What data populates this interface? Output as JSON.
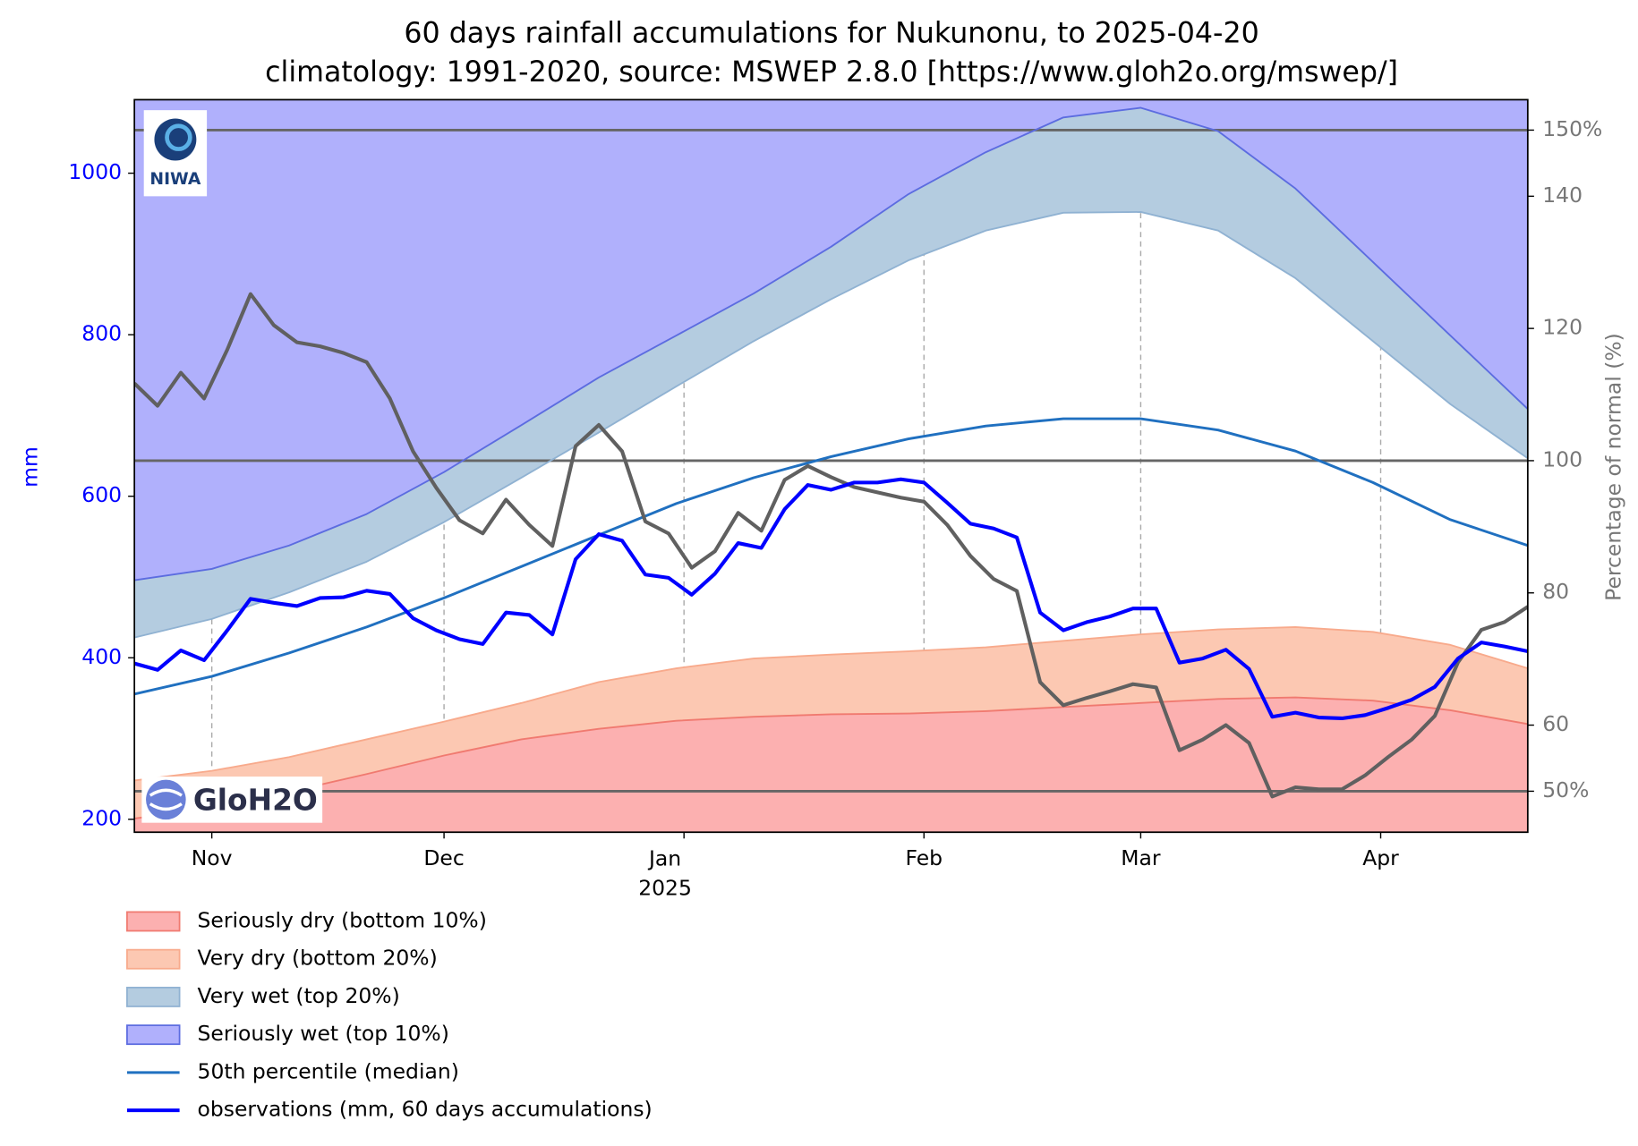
{
  "chart_data": {
    "type": "line",
    "title": "60 days rainfall accumulations for Nukunonu, to 2025-04-20",
    "subtitle": "climatology: 1991-2020, source: MSWEP 2.8.0 [https://www.gloh2o.org/mswep/]",
    "ylabel": "mm",
    "y2label": "Percentage of normal (%)",
    "logos": [
      "NIWA",
      "GloH2O"
    ],
    "xlim": [
      0,
      180
    ],
    "xticks": [
      {
        "value": 10,
        "label": "Nov"
      },
      {
        "value": 40,
        "label": "Dec"
      },
      {
        "value": 71,
        "label": "Jan\n2025"
      },
      {
        "value": 102,
        "label": "Feb"
      },
      {
        "value": 130,
        "label": "Mar"
      },
      {
        "value": 161,
        "label": "Apr"
      }
    ],
    "xgrid": true,
    "ylim": [
      184,
      1091
    ],
    "yticks": [
      200,
      400,
      600,
      800,
      1000
    ],
    "y2lim": [
      43.8,
      154.6
    ],
    "y2ticks": [
      {
        "value": 50,
        "label": "50%"
      },
      60,
      80,
      100,
      120,
      140,
      {
        "value": 150,
        "label": "150%"
      }
    ],
    "reference_lines_y2": [
      50,
      100,
      150
    ],
    "legend": "below",
    "series": [
      {
        "name": "Seriously dry (bottom 10%)",
        "fill": "down",
        "color": "#fcb0b0",
        "edge_color": "#f07a70",
        "x": [
          0,
          10,
          20,
          30,
          40,
          50,
          60,
          70,
          80,
          90,
          100,
          110,
          120,
          130,
          140,
          150,
          160,
          170,
          180
        ],
        "values": [
          201,
          214,
          234,
          256,
          279,
          299,
          312,
          322,
          327,
          330,
          331,
          334,
          339,
          344,
          349,
          351,
          347,
          335,
          318
        ]
      },
      {
        "name": "Very dry (bottom 20%)",
        "fill": "down",
        "color": "#fcc8b2",
        "edge_color": "#f8aa8c",
        "x": [
          0,
          10,
          20,
          30,
          40,
          50,
          60,
          70,
          80,
          90,
          100,
          110,
          120,
          130,
          140,
          150,
          160,
          170,
          180
        ],
        "values": [
          248,
          260,
          277,
          299,
          321,
          344,
          370,
          387,
          399,
          404,
          408,
          413,
          421,
          429,
          435,
          438,
          432,
          416,
          387
        ]
      },
      {
        "name": "Very wet (top 20%)",
        "fill": "up",
        "color": "#b4cce0",
        "edge_color": "#90b2d2",
        "x": [
          0,
          10,
          20,
          30,
          40,
          50,
          60,
          70,
          80,
          90,
          100,
          110,
          120,
          130,
          140,
          150,
          160,
          170,
          180
        ],
        "values": [
          425,
          448,
          481,
          519,
          568,
          623,
          679,
          736,
          792,
          844,
          892,
          929,
          951,
          952,
          929,
          870,
          792,
          714,
          647
        ]
      },
      {
        "name": "Seriously wet (top 10%)",
        "fill": "up",
        "color": "#b0b0fc",
        "edge_color": "#5c6ce0",
        "x": [
          0,
          10,
          20,
          30,
          40,
          50,
          60,
          70,
          80,
          90,
          100,
          110,
          120,
          130,
          140,
          150,
          160,
          170,
          180
        ],
        "values": [
          496,
          510,
          539,
          578,
          630,
          688,
          747,
          799,
          851,
          909,
          974,
          1026,
          1069,
          1081,
          1052,
          981,
          890,
          799,
          708
        ]
      },
      {
        "name": "50th percentile (median)",
        "color": "#2070c0",
        "linewidth": 2.5,
        "x": [
          0,
          10,
          20,
          30,
          40,
          50,
          60,
          70,
          80,
          90,
          100,
          110,
          120,
          130,
          140,
          150,
          160,
          170,
          180
        ],
        "values": [
          355,
          377,
          406,
          438,
          474,
          513,
          552,
          591,
          623,
          649,
          671,
          687,
          696,
          696,
          682,
          656,
          617,
          571,
          539
        ]
      },
      {
        "axis": "y2",
        "color": "#606060",
        "linewidth": 3.5,
        "x": [
          0,
          3,
          6,
          9,
          12,
          15,
          18,
          21,
          24,
          27,
          30,
          33,
          36,
          39,
          42,
          45,
          48,
          51,
          54,
          57,
          60,
          63,
          66,
          69,
          72,
          75,
          78,
          81,
          84,
          87,
          90,
          93,
          96,
          99,
          102,
          105,
          108,
          111,
          114,
          117,
          120,
          123,
          126,
          129,
          132,
          135,
          138,
          141,
          144,
          147,
          150,
          153,
          156,
          159,
          162,
          165,
          168,
          171,
          174,
          177,
          180
        ],
        "values": [
          111.7,
          108.3,
          113.3,
          109.4,
          116.8,
          125.2,
          120.5,
          117.9,
          117.3,
          116.3,
          114.9,
          109.4,
          101.4,
          95.9,
          91.0,
          89.0,
          94.1,
          90.3,
          87.1,
          102.2,
          105.4,
          101.4,
          90.8,
          89.0,
          83.8,
          86.3,
          92.1,
          89.4,
          97.1,
          99.2,
          97.5,
          96.0,
          95.2,
          94.4,
          93.8,
          90.3,
          85.6,
          82.1,
          80.3,
          66.5,
          63.0,
          64.1,
          65.1,
          66.2,
          65.7,
          56.2,
          57.8,
          60.0,
          57.3,
          49.2,
          50.6,
          50.3,
          50.3,
          52.4,
          55.2,
          57.8,
          61.4,
          69.5,
          74.4,
          75.6,
          77.9
        ]
      },
      {
        "name": "observations (mm, 60 days accumulations)",
        "color": "#0000ff",
        "linewidth": 3.5,
        "x": [
          0,
          3,
          6,
          9,
          12,
          15,
          18,
          21,
          24,
          27,
          30,
          33,
          36,
          39,
          42,
          45,
          48,
          51,
          54,
          57,
          60,
          63,
          66,
          69,
          72,
          75,
          78,
          81,
          84,
          87,
          90,
          93,
          96,
          99,
          102,
          105,
          108,
          111,
          114,
          117,
          120,
          123,
          126,
          129,
          132,
          135,
          138,
          141,
          144,
          147,
          150,
          153,
          156,
          159,
          162,
          165,
          168,
          171,
          174,
          177,
          180
        ],
        "values": [
          393,
          385,
          409,
          397,
          434,
          473,
          468,
          464,
          474,
          475,
          483,
          479,
          449,
          434,
          423,
          417,
          456,
          453,
          429,
          522,
          553,
          545,
          503,
          499,
          478,
          504,
          542,
          536,
          584,
          614,
          608,
          617,
          617,
          621,
          617,
          592,
          566,
          560,
          549,
          456,
          434,
          444,
          451,
          461,
          461,
          394,
          399,
          410,
          386,
          327,
          332,
          326,
          325,
          329,
          338,
          348,
          364,
          399,
          419,
          414,
          408
        ]
      }
    ]
  }
}
